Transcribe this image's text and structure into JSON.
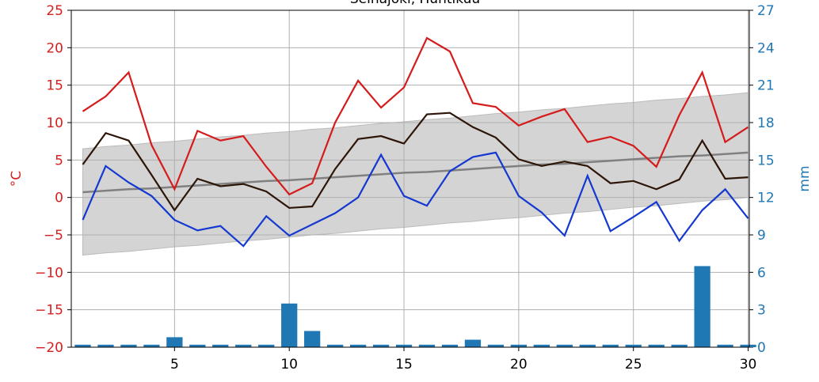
{
  "chart_data": {
    "type": "line",
    "title": "Seinäjoki, Huhtikuu",
    "ylabel": "°C",
    "y2label": "mm",
    "x": [
      1,
      2,
      3,
      4,
      5,
      6,
      7,
      8,
      9,
      10,
      11,
      12,
      13,
      14,
      15,
      16,
      17,
      18,
      19,
      20,
      21,
      22,
      23,
      24,
      25,
      26,
      27,
      28,
      29,
      30
    ],
    "xlim": [
      0.5,
      30.05
    ],
    "xticks": [
      5,
      10,
      15,
      20,
      25,
      30
    ],
    "ylim": [
      -20,
      25
    ],
    "yticks": [
      {
        "value": -20,
        "label": "−20"
      },
      {
        "value": -15,
        "label": "−15"
      },
      {
        "value": -10,
        "label": "−10"
      },
      {
        "value": -5,
        "label": "−5"
      },
      0,
      5,
      10,
      15,
      20,
      25
    ],
    "y2lim": [
      0,
      27
    ],
    "y2ticks": [
      0,
      3,
      6,
      9,
      12,
      15,
      18,
      21,
      24,
      27
    ],
    "grid": true,
    "ycolor": "#d62020",
    "y2color": "#1f77b4",
    "band": {
      "color": "#d4d4d4",
      "upper": [
        6.5,
        6.8,
        7.0,
        7.3,
        7.5,
        7.8,
        8.1,
        8.3,
        8.6,
        8.8,
        9.1,
        9.3,
        9.6,
        9.9,
        10.1,
        10.4,
        10.6,
        10.9,
        11.2,
        11.4,
        11.7,
        11.9,
        12.2,
        12.5,
        12.7,
        13.0,
        13.2,
        13.5,
        13.7,
        14.0
      ],
      "lower": [
        -7.7,
        -7.4,
        -7.2,
        -6.9,
        -6.6,
        -6.4,
        -6.1,
        -5.8,
        -5.6,
        -5.3,
        -5.0,
        -4.8,
        -4.5,
        -4.2,
        -4.0,
        -3.7,
        -3.4,
        -3.2,
        -2.9,
        -2.7,
        -2.4,
        -2.1,
        -1.9,
        -1.6,
        -1.3,
        -1.1,
        -0.8,
        -0.5,
        -0.3,
        0.0
      ]
    },
    "series": [
      {
        "color": "#808080",
        "values": [
          0.7,
          0.9,
          1.1,
          1.2,
          1.4,
          1.6,
          1.8,
          2.0,
          2.2,
          2.3,
          2.5,
          2.7,
          2.9,
          3.1,
          3.3,
          3.4,
          3.6,
          3.8,
          4.0,
          4.2,
          4.4,
          4.5,
          4.7,
          4.9,
          5.1,
          5.3,
          5.5,
          5.6,
          5.8,
          6.0
        ]
      },
      {
        "color": "#d41c1c",
        "values": [
          11.5,
          13.5,
          16.7,
          7,
          1.1,
          8.9,
          7.6,
          8.2,
          4.1,
          0.4,
          1.9,
          10,
          15.6,
          12,
          14.7,
          21.3,
          19.5,
          12.6,
          12.1,
          9.6,
          10.8,
          11.8,
          7.4,
          8.1,
          6.9,
          4.1,
          11,
          16.7,
          7.4,
          9.4
        ]
      },
      {
        "color": "#2d1508",
        "values": [
          4.4,
          8.6,
          7.6,
          3,
          -1.7,
          2.5,
          1.5,
          1.8,
          0.8,
          -1.4,
          -1.2,
          3.8,
          7.8,
          8.2,
          7.2,
          11.1,
          11.3,
          9.4,
          8,
          5.1,
          4.2,
          4.8,
          4.2,
          1.9,
          2.2,
          1.1,
          2.4,
          7.6,
          2.5,
          2.7
        ]
      },
      {
        "color": "#1438d0",
        "values": [
          -3,
          4.2,
          2,
          0.2,
          -3,
          -4.4,
          -3.8,
          -6.5,
          -2.5,
          -5.1,
          -3.6,
          -2.1,
          0,
          5.7,
          0.2,
          -1.1,
          3.5,
          5.4,
          6,
          0.2,
          -2,
          -5.1,
          2.9,
          -4.5,
          -2.6,
          -0.6,
          -5.8,
          -1.7,
          1.1,
          -2.8
        ]
      }
    ],
    "precipitation": {
      "axis": "y2",
      "color": "#1f77b4",
      "values": [
        0.2,
        0.2,
        0.2,
        0.2,
        0.8,
        0.2,
        0.2,
        0.2,
        0.2,
        3.5,
        1.3,
        0.2,
        0.2,
        0.2,
        0.2,
        0.2,
        0.2,
        0.6,
        0.2,
        0.2,
        0.2,
        0.2,
        0.2,
        0.2,
        0.2,
        0.2,
        0.2,
        6.5,
        0.2,
        0.2
      ]
    }
  }
}
